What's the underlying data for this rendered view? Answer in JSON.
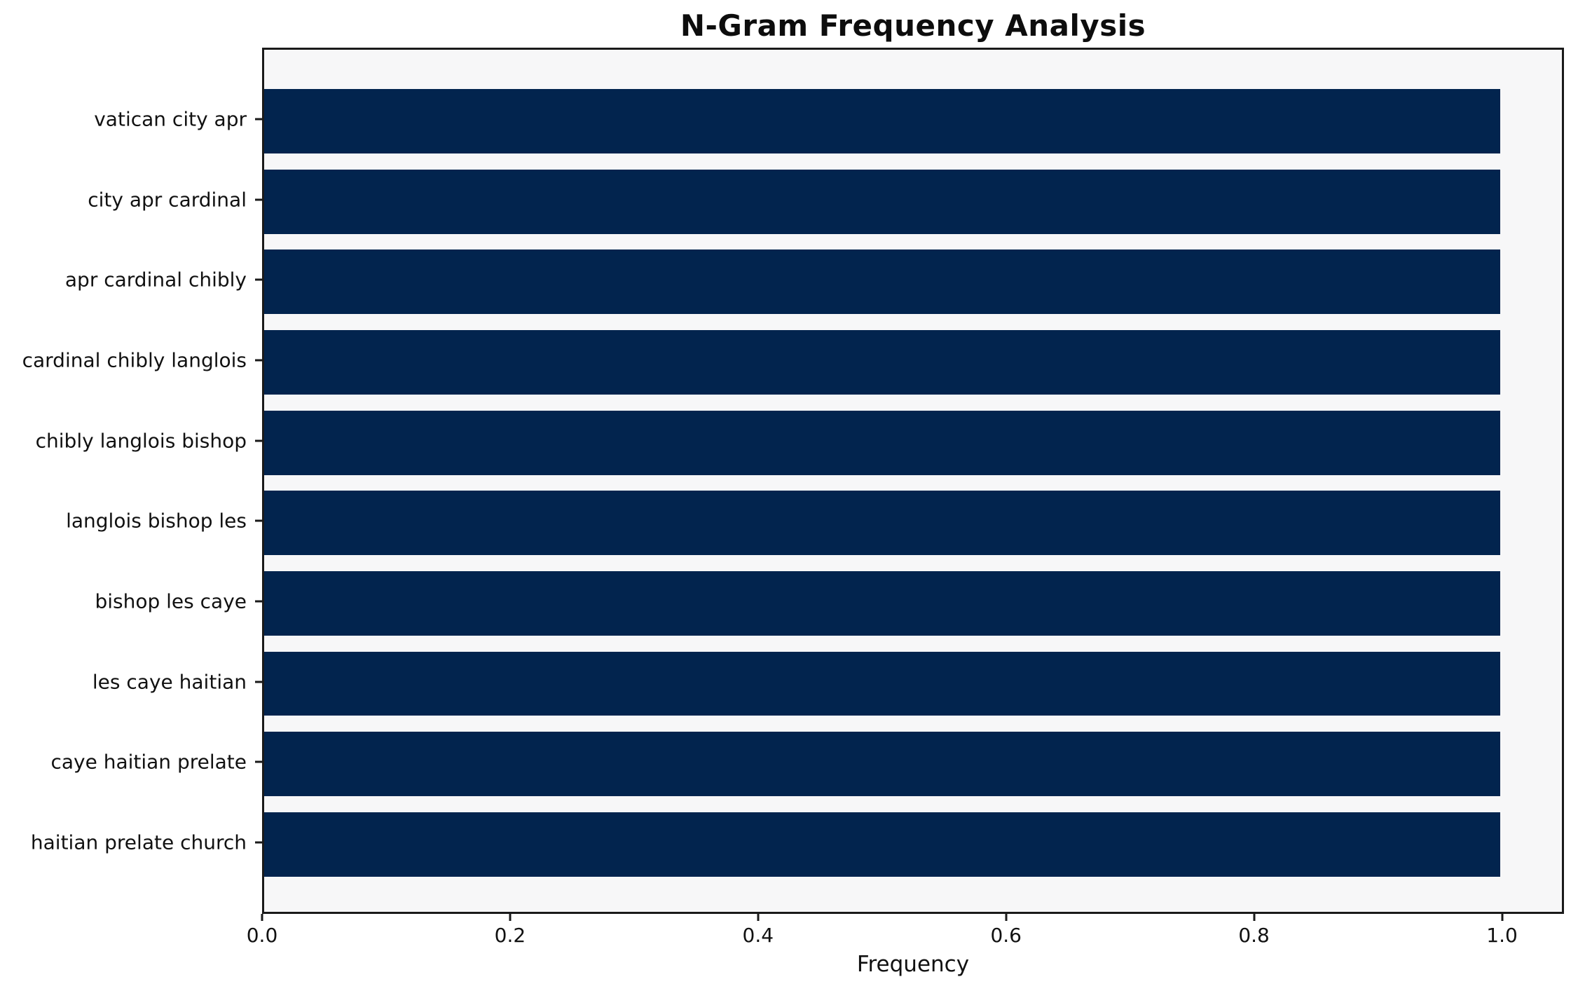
{
  "chart_data": {
    "type": "bar",
    "orientation": "horizontal",
    "title": "N-Gram Frequency Analysis",
    "xlabel": "Frequency",
    "ylabel": "",
    "categories": [
      "vatican city apr",
      "city apr cardinal",
      "apr cardinal chibly",
      "cardinal chibly langlois",
      "chibly langlois bishop",
      "langlois bishop les",
      "bishop les caye",
      "les caye haitian",
      "caye haitian prelate",
      "haitian prelate church"
    ],
    "values": [
      1.0,
      1.0,
      1.0,
      1.0,
      1.0,
      1.0,
      1.0,
      1.0,
      1.0,
      1.0
    ],
    "xlim": [
      0,
      1.05
    ],
    "xticks": [
      0.0,
      0.2,
      0.4,
      0.6,
      0.8,
      1.0
    ],
    "xtick_labels": [
      "0.0",
      "0.2",
      "0.4",
      "0.6",
      "0.8",
      "1.0"
    ],
    "grid": false,
    "legend": false,
    "colors": {
      "bar": "#02244e",
      "plot_bg": "#f7f7f8",
      "fig_bg": "#ffffff",
      "spine": "#1a1a1a",
      "text": "#111111"
    }
  }
}
